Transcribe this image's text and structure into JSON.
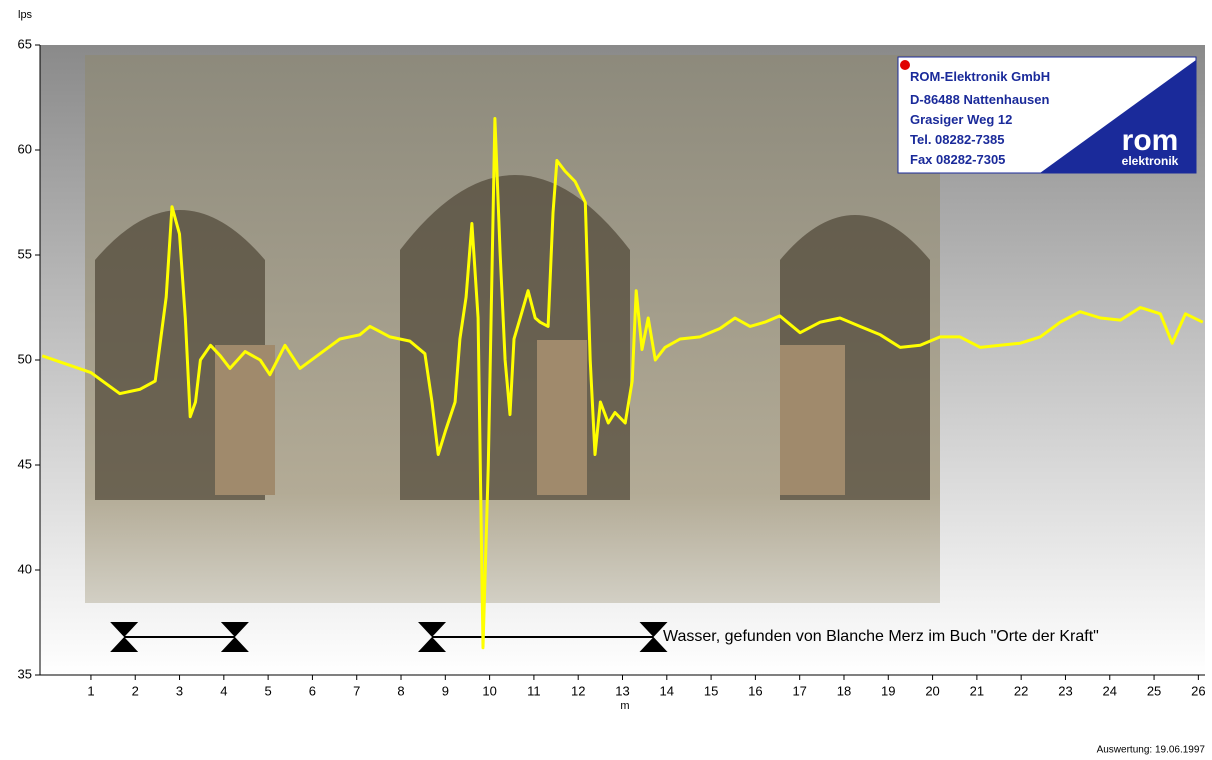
{
  "chart_data": {
    "type": "line",
    "y_label": "lps",
    "x_label": "m",
    "xlim": [
      -0.15,
      26.15
    ],
    "xticks": [
      1,
      2,
      3,
      4,
      5,
      6,
      7,
      8,
      9,
      10,
      11,
      12,
      13,
      14,
      15,
      16,
      17,
      18,
      19,
      20,
      21,
      22,
      23,
      24,
      25,
      26
    ],
    "ylim": [
      35,
      65
    ],
    "yticks": [
      35,
      40,
      45,
      50,
      55,
      60,
      65
    ],
    "series": [
      {
        "color": "#ffff00",
        "x": [
          -0.1,
          1,
          1.65,
          2.1,
          2.45,
          2.7,
          2.83,
          3.0,
          3.13,
          3.24,
          3.36,
          3.47,
          3.7,
          3.92,
          4.14,
          4.48,
          4.82,
          5.04,
          5.38,
          5.72,
          6.17,
          6.62,
          7.07,
          7.3,
          7.75,
          8.2,
          8.54,
          8.7,
          8.84,
          9.0,
          9.22,
          9.33,
          9.47,
          9.6,
          9.74,
          9.85,
          9.97,
          10.12,
          10.24,
          10.35,
          10.46,
          10.55,
          10.69,
          10.87,
          11.03,
          11.14,
          11.32,
          11.43,
          11.52,
          11.7,
          11.93,
          12.16,
          12.27,
          12.38,
          12.5,
          12.68,
          12.83,
          13.06,
          13.22,
          13.31,
          13.44,
          13.58,
          13.74,
          13.96,
          14.3,
          14.75,
          15.2,
          15.54,
          15.88,
          16.21,
          16.55,
          17.01,
          17.46,
          17.91,
          18.36,
          18.82,
          19.27,
          19.72,
          20.17,
          20.62,
          21.08,
          21.53,
          21.98,
          22.43,
          22.88,
          23.33,
          23.79,
          24.24,
          24.69,
          25.14,
          25.41,
          25.71,
          26.1
        ],
        "values": [
          50.2,
          49.4,
          48.4,
          48.6,
          49.0,
          53,
          57.3,
          56,
          52,
          47.3,
          48,
          50,
          50.7,
          50.2,
          49.6,
          50.4,
          50,
          49.3,
          50.7,
          49.6,
          50.3,
          51,
          51.2,
          51.6,
          51.1,
          50.9,
          50.3,
          48,
          45.5,
          46.6,
          48,
          51,
          53,
          56.5,
          52,
          36.3,
          45,
          61.5,
          55,
          50,
          47.4,
          51,
          52,
          53.3,
          52,
          51.8,
          51.6,
          57,
          59.5,
          59,
          58.5,
          57.5,
          50,
          45.5,
          48,
          47,
          47.5,
          47,
          49,
          53.3,
          50.5,
          52,
          50,
          50.6,
          51,
          51.1,
          51.5,
          52,
          51.6,
          51.8,
          52.1,
          51.3,
          51.8,
          52,
          51.6,
          51.2,
          50.6,
          50.7,
          51.1,
          51.1,
          50.6,
          50.7,
          50.8,
          51.1,
          51.8,
          52.3,
          52,
          51.9,
          52.5,
          52.2,
          50.8,
          52.2,
          51.8
        ]
      }
    ],
    "spans": [
      [
        1.75,
        4.25
      ],
      [
        8.7,
        13.7
      ]
    ],
    "annotation": "Wasser, gefunden von Blanche Merz im Buch \"Orte der Kraft\"",
    "footer": "Auswertung: 19.06.1997",
    "logo": {
      "company": "ROM-Elektronik GmbH",
      "lines": [
        "D-86488 Nattenhausen",
        "Grasiger Weg 12",
        "Tel. 08282-7385",
        "Fax 08282-7305"
      ],
      "brand": "rom",
      "brand_sub": "elektronik"
    }
  }
}
